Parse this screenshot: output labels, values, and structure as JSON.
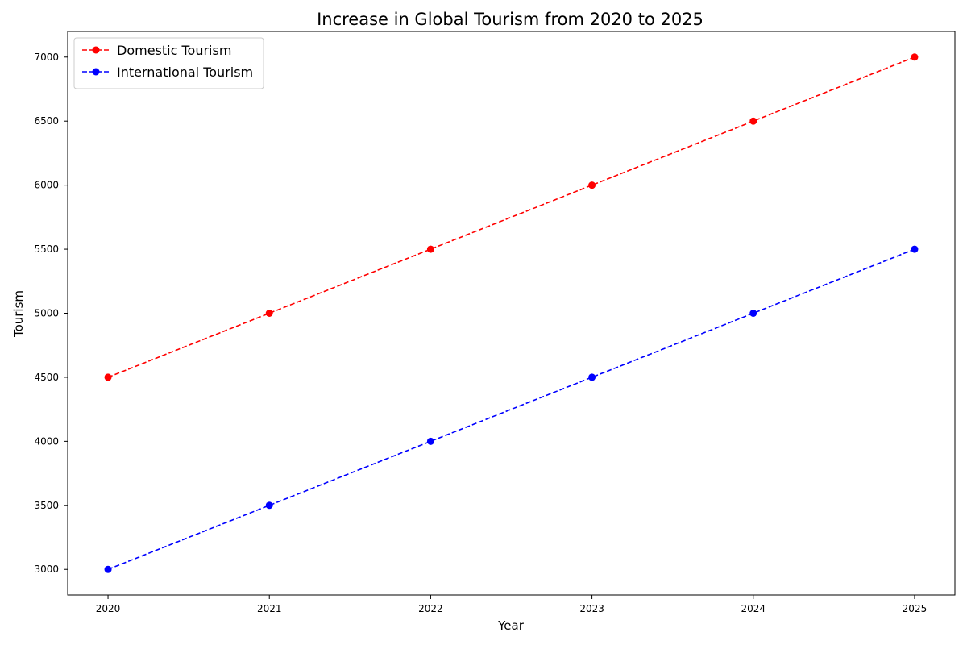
{
  "chart_data": {
    "type": "line",
    "title": "Increase in Global Tourism from 2020 to 2025",
    "xlabel": "Year",
    "ylabel": "Tourism",
    "x": [
      2020,
      2021,
      2022,
      2023,
      2024,
      2025
    ],
    "x_tick_labels": [
      "2020",
      "2021",
      "2022",
      "2023",
      "2024",
      "2025"
    ],
    "y_ticks": [
      3000,
      3500,
      4000,
      4500,
      5000,
      5500,
      6000,
      6500,
      7000
    ],
    "xlim": [
      2019.75,
      2025.25
    ],
    "ylim": [
      2800,
      7200
    ],
    "grid": false,
    "legend_position": "top-left",
    "series": [
      {
        "name": "Domestic Tourism",
        "color": "#ff0000",
        "line_style": "dashed",
        "marker": "circle",
        "values": [
          4500,
          5000,
          5500,
          6000,
          6500,
          7000
        ]
      },
      {
        "name": "International Tourism",
        "color": "#0000ff",
        "line_style": "dashed",
        "marker": "circle",
        "values": [
          3000,
          3500,
          4000,
          4500,
          5000,
          5500
        ]
      }
    ]
  }
}
